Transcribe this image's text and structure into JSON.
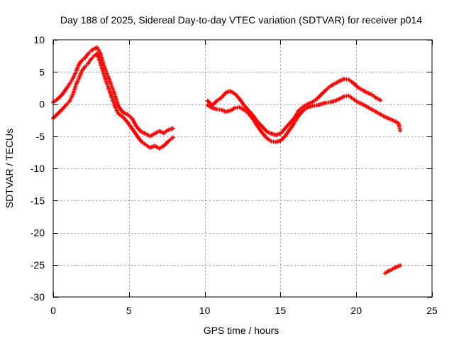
{
  "chart_data": {
    "type": "scatter",
    "title": "Day 188 of 2025, Sidereal Day-to-day VTEC variation (SDTVAR) for receiver p014",
    "xlabel": "GPS time / hours",
    "ylabel": "SDTVAR / TECUs",
    "xlim": [
      0,
      25
    ],
    "ylim": [
      -30,
      10
    ],
    "xticks": [
      0,
      5,
      10,
      15,
      20,
      25
    ],
    "yticks": [
      10,
      5,
      0,
      -5,
      -10,
      -15,
      -20,
      -25,
      -30
    ],
    "xtick_labels": [
      "0",
      "5",
      "10",
      "15",
      "20",
      "25"
    ],
    "ytick_labels": [
      "10",
      "5",
      "0",
      "-5",
      "-10",
      "-15",
      "-20",
      "-25",
      "-30"
    ],
    "grid": true,
    "marker": "plus",
    "series": [
      {
        "name": "segment-1-upper",
        "color": "#ff0000",
        "x": [
          0.0,
          0.3,
          0.6,
          0.9,
          1.1,
          1.3,
          1.5,
          1.7,
          1.9,
          2.1,
          2.3,
          2.5,
          2.7,
          2.9,
          3.1,
          3.3,
          3.5,
          3.7,
          3.9,
          4.1,
          4.3,
          4.6,
          4.9,
          5.2,
          5.5,
          5.8,
          6.1,
          6.4,
          6.7,
          7.0,
          7.3,
          7.6,
          7.9
        ],
        "y": [
          0.3,
          0.8,
          1.5,
          2.5,
          3.2,
          4.0,
          5.0,
          6.2,
          6.8,
          7.2,
          7.8,
          8.3,
          8.6,
          8.8,
          8.0,
          6.3,
          5.0,
          3.8,
          2.5,
          1.2,
          -0.3,
          -1.3,
          -1.6,
          -2.2,
          -3.5,
          -4.3,
          -4.6,
          -5.0,
          -4.6,
          -4.2,
          -4.5,
          -4.0,
          -3.8
        ]
      },
      {
        "name": "segment-1-lower",
        "color": "#ff0000",
        "x": [
          0.0,
          0.3,
          0.6,
          0.9,
          1.1,
          1.3,
          1.5,
          1.7,
          1.9,
          2.1,
          2.3,
          2.5,
          2.7,
          2.9,
          3.1,
          3.3,
          3.5,
          3.7,
          3.9,
          4.1,
          4.3,
          4.6,
          4.9,
          5.2,
          5.5,
          5.8,
          6.1,
          6.4,
          6.7,
          7.0,
          7.3,
          7.6,
          7.9
        ],
        "y": [
          -2.2,
          -1.5,
          -0.8,
          0.0,
          0.5,
          1.5,
          3.0,
          4.0,
          5.2,
          5.8,
          6.3,
          7.0,
          7.5,
          7.9,
          6.5,
          5.0,
          3.5,
          2.2,
          0.8,
          -0.5,
          -1.5,
          -2.0,
          -2.8,
          -3.8,
          -4.8,
          -5.8,
          -6.3,
          -6.8,
          -6.5,
          -6.9,
          -6.5,
          -5.8,
          -5.2
        ]
      },
      {
        "name": "segment-2-upper",
        "color": "#ff0000",
        "x": [
          10.2,
          10.5,
          10.8,
          11.1,
          11.4,
          11.7,
          12.0,
          12.3,
          12.6,
          12.9,
          13.2,
          13.5,
          13.8,
          14.1,
          14.4,
          14.7,
          15.0,
          15.3,
          15.6,
          15.9,
          16.2,
          16.5,
          16.8,
          17.1,
          17.4,
          17.7,
          18.0,
          18.3,
          18.6,
          18.9,
          19.2,
          19.5,
          19.8,
          20.1,
          20.4,
          20.7,
          21.0,
          21.3,
          21.6
        ],
        "y": [
          0.5,
          -0.2,
          0.5,
          1.0,
          1.8,
          2.0,
          1.6,
          0.8,
          -0.2,
          -1.0,
          -1.8,
          -2.8,
          -3.5,
          -4.3,
          -4.6,
          -4.8,
          -4.6,
          -3.8,
          -3.0,
          -2.2,
          -1.0,
          -0.4,
          0.0,
          0.3,
          0.8,
          1.5,
          2.2,
          2.8,
          3.2,
          3.6,
          3.9,
          3.8,
          3.3,
          2.6,
          2.2,
          1.8,
          1.5,
          1.0,
          0.6
        ]
      },
      {
        "name": "segment-2-lower",
        "color": "#ff0000",
        "x": [
          10.2,
          10.5,
          10.8,
          11.1,
          11.4,
          11.7,
          12.0,
          12.3,
          12.6,
          12.9,
          13.2,
          13.5,
          13.8,
          14.1,
          14.4,
          14.7,
          15.0,
          15.3,
          15.6,
          15.9,
          16.2,
          16.5,
          16.8,
          17.1,
          17.4,
          17.7,
          18.0,
          18.3,
          18.6,
          18.9,
          19.2,
          19.5,
          19.8,
          20.1,
          20.4,
          20.7,
          21.0,
          21.3,
          21.6,
          21.9,
          22.2,
          22.5,
          22.8,
          22.9
        ],
        "y": [
          -0.2,
          -0.6,
          -0.8,
          -0.9,
          -1.2,
          -1.0,
          -0.6,
          -0.5,
          -0.9,
          -1.5,
          -2.4,
          -3.5,
          -4.5,
          -5.3,
          -5.8,
          -5.9,
          -5.7,
          -5.0,
          -4.0,
          -3.0,
          -1.8,
          -1.0,
          -0.5,
          -0.3,
          -0.2,
          0.0,
          0.2,
          0.3,
          0.5,
          0.8,
          1.2,
          1.3,
          0.8,
          0.3,
          0.0,
          -0.4,
          -0.8,
          -1.2,
          -1.6,
          -2.0,
          -2.3,
          -2.6,
          -3.0,
          -4.1
        ]
      },
      {
        "name": "segment-3",
        "color": "#ff0000",
        "x": [
          21.9,
          22.1,
          22.3,
          22.5,
          22.7,
          22.9
        ],
        "y": [
          -26.3,
          -26.0,
          -25.8,
          -25.5,
          -25.3,
          -25.1
        ]
      }
    ]
  }
}
